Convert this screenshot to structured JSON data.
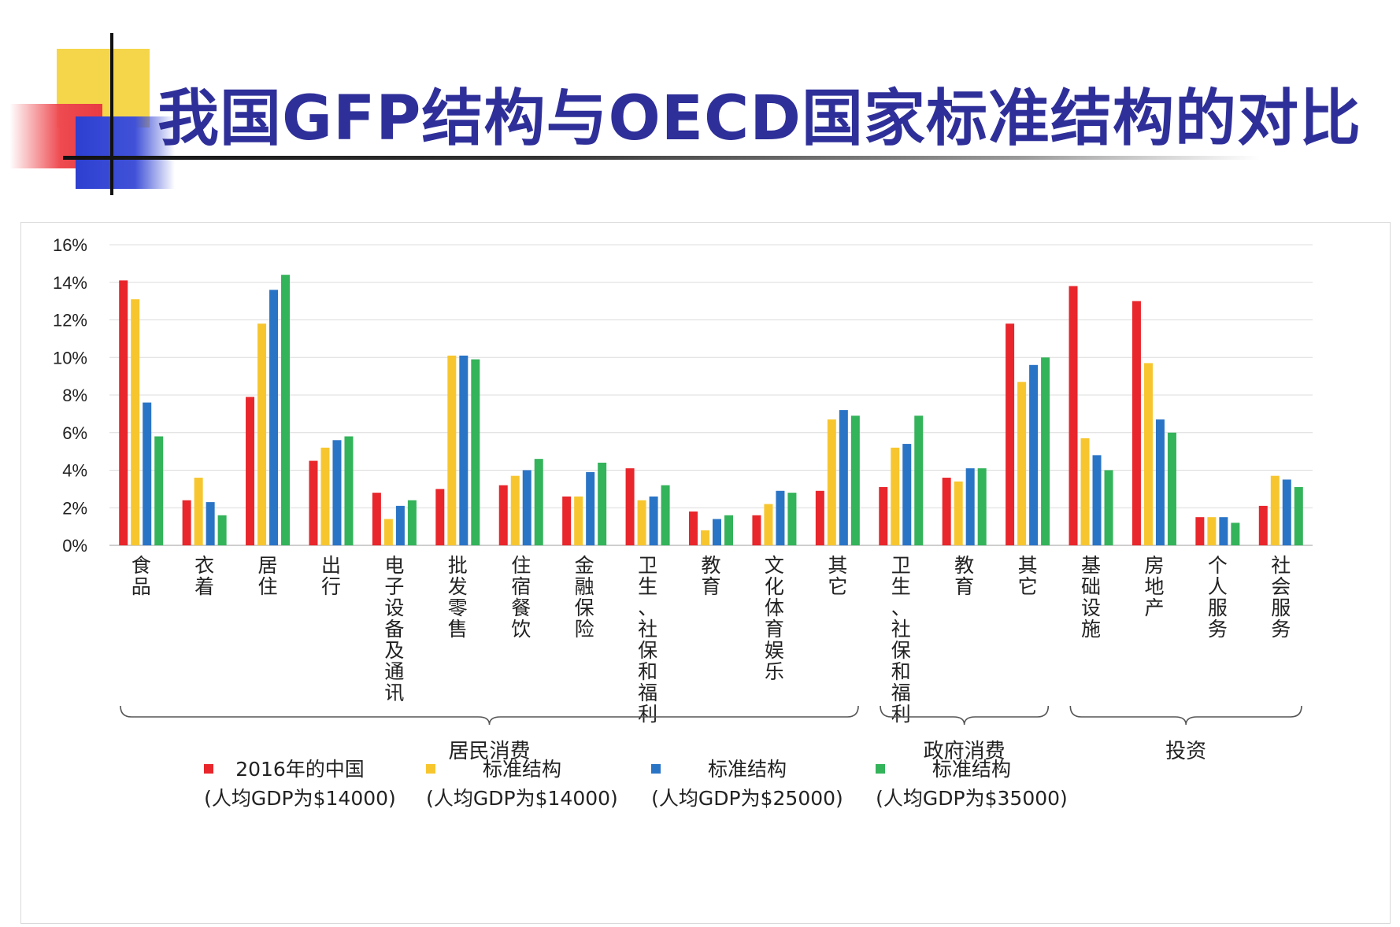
{
  "slide": {
    "title": "我国GFP结构与OECD国家标准结构的对比"
  },
  "chart_data": {
    "type": "bar",
    "title": "我国GFP结构与OECD国家标准结构的对比",
    "ylim": [
      0,
      16
    ],
    "yticks": [
      "0%",
      "2%",
      "4%",
      "6%",
      "8%",
      "10%",
      "12%",
      "14%",
      "16%"
    ],
    "ytick_values": [
      0,
      2,
      4,
      6,
      8,
      10,
      12,
      14,
      16
    ],
    "grid": true,
    "categories": [
      "食品",
      "衣着",
      "居住",
      "出行",
      "电子设备及通讯",
      "批发零售",
      "住宿餐饮",
      "金融保险",
      "卫生、社保和福利",
      "教育",
      "文化体育娱乐",
      "其它",
      "卫生、社保和福利",
      "教育",
      "其它",
      "基础设施",
      "房地产",
      "个人服务",
      "社会服务"
    ],
    "groups": [
      {
        "label": "居民消费",
        "from": 0,
        "to": 11
      },
      {
        "label": "政府消费",
        "from": 12,
        "to": 14
      },
      {
        "label": "投资",
        "from": 15,
        "to": 18
      }
    ],
    "series": [
      {
        "name": "2016年的中国",
        "sub": "(人均GDP为$14000)",
        "color": "#e8262b",
        "values": [
          14.1,
          2.4,
          7.9,
          4.5,
          2.8,
          3.0,
          3.2,
          2.6,
          4.1,
          1.8,
          1.6,
          2.9,
          3.1,
          3.6,
          11.8,
          13.8,
          13.0,
          1.5,
          2.1
        ]
      },
      {
        "name": "标准结构",
        "sub": "(人均GDP为$14000)",
        "color": "#f7c62f",
        "values": [
          13.1,
          3.6,
          11.8,
          5.2,
          1.4,
          10.1,
          3.7,
          2.6,
          2.4,
          0.8,
          2.2,
          6.7,
          5.2,
          3.4,
          8.7,
          5.7,
          9.7,
          1.5,
          3.7
        ]
      },
      {
        "name": "标准结构",
        "sub": "(人均GDP为$25000)",
        "color": "#2a74c6",
        "values": [
          7.6,
          2.3,
          13.6,
          5.6,
          2.1,
          10.1,
          4.0,
          3.9,
          2.6,
          1.4,
          2.9,
          7.2,
          5.4,
          4.1,
          9.6,
          4.8,
          6.7,
          1.5,
          3.5
        ]
      },
      {
        "name": "标准结构",
        "sub": "(人均GDP为$35000)",
        "color": "#33b35a",
        "values": [
          5.8,
          1.6,
          14.4,
          5.8,
          2.4,
          9.9,
          4.6,
          4.4,
          3.2,
          1.6,
          2.8,
          6.9,
          6.9,
          4.1,
          10.0,
          4.0,
          6.0,
          1.2,
          3.1
        ]
      }
    ]
  }
}
